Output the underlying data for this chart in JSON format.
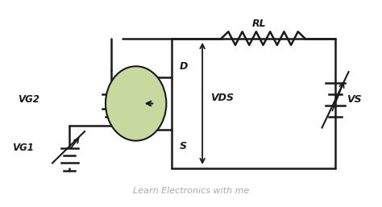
{
  "bg_color": "#ffffff",
  "line_color": "#1a1a1a",
  "circuit_color": "#000000",
  "mosfet_fill": "#c8d9a0",
  "text_color": "#333333",
  "watermark_color": "#aaaaaa",
  "title": "Learn Electronics with me",
  "label_RL": "RL",
  "label_VDS": "VDS",
  "label_VS": "VS",
  "label_VG1": "VG1",
  "label_VG2": "VG2",
  "label_D": "D",
  "label_S": "S"
}
